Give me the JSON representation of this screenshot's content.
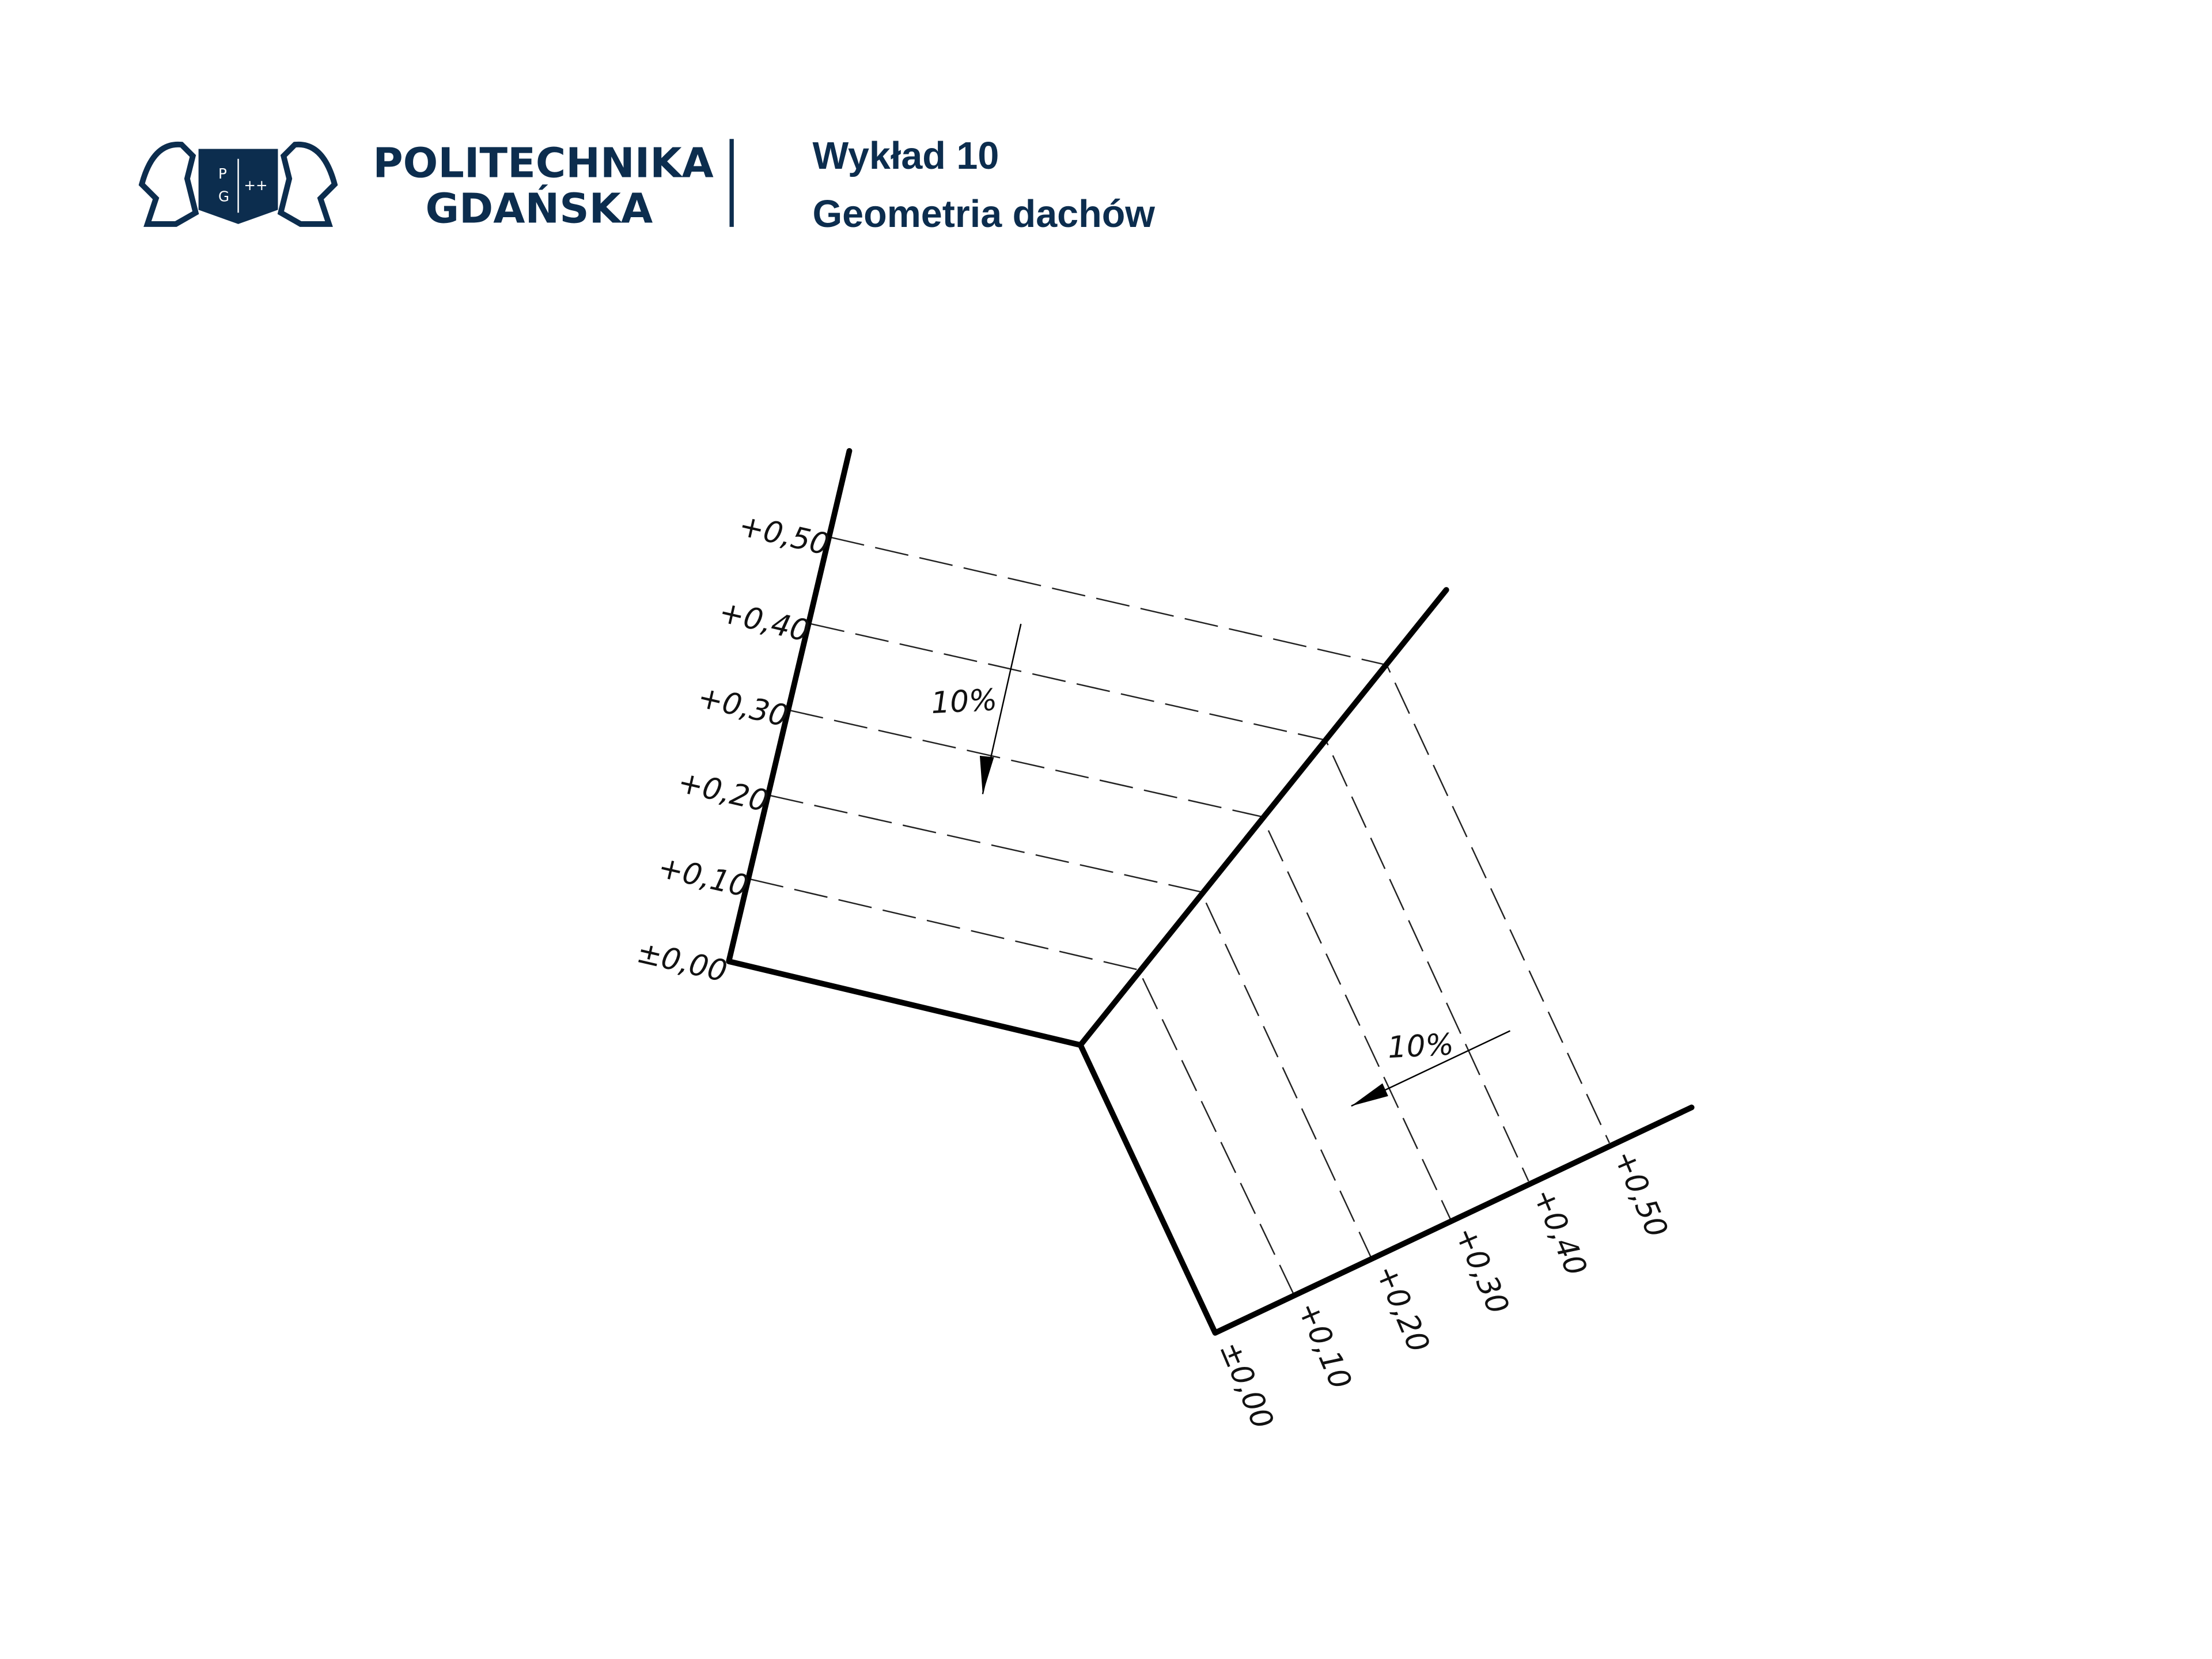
{
  "header": {
    "university_line1": "POLITECHNIKA",
    "university_line2": "GDAŃSKA",
    "logo_letters": "PG",
    "lecture": "Wykład 10",
    "topic": "Geometria dachów"
  },
  "brand_color": "#0c2d4e",
  "diagram": {
    "left_levels": [
      "±0,00",
      "+0,10",
      "+0,20",
      "+0,30",
      "+0,40",
      "+0,50"
    ],
    "right_levels": [
      "±0,00",
      "+0,10",
      "+0,20",
      "+0,30",
      "+0,40",
      "+0,50"
    ],
    "slope_left": "10%",
    "slope_right": "10%"
  }
}
